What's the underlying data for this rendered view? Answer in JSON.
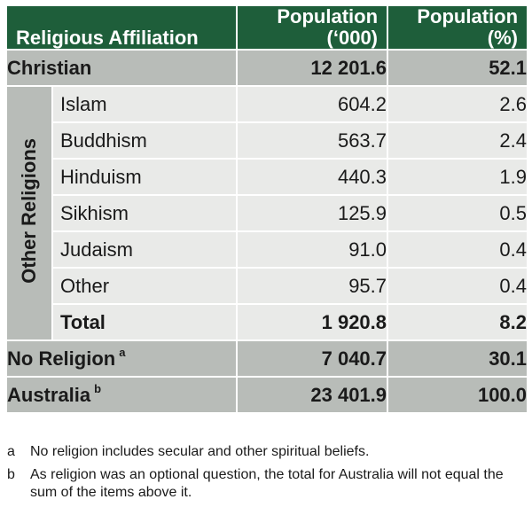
{
  "table": {
    "headers": {
      "affiliation": "Religious Affiliation",
      "population_thousands": [
        "Population",
        "(‘000)"
      ],
      "population_percent": [
        "Population",
        "(%)"
      ]
    },
    "christian": {
      "label": "Christian",
      "thousands": "12 201.6",
      "percent": "52.1"
    },
    "other_religions": {
      "group_label": "Other Religions",
      "rows": [
        {
          "label": "Islam",
          "thousands": "604.2",
          "percent": "2.6"
        },
        {
          "label": "Buddhism",
          "thousands": "563.7",
          "percent": "2.4"
        },
        {
          "label": "Hinduism",
          "thousands": "440.3",
          "percent": "1.9"
        },
        {
          "label": "Sikhism",
          "thousands": "125.9",
          "percent": "0.5"
        },
        {
          "label": "Judaism",
          "thousands": "91.0",
          "percent": "0.4"
        },
        {
          "label": "Other",
          "thousands": "95.7",
          "percent": "0.4"
        }
      ],
      "total": {
        "label": "Total",
        "thousands": "1 920.8",
        "percent": "8.2"
      }
    },
    "no_religion": {
      "label": "No Religion",
      "note": "a",
      "thousands": "7 040.7",
      "percent": "30.1"
    },
    "australia": {
      "label": "Australia",
      "note": "b",
      "thousands": "23 401.9",
      "percent": "100.0"
    }
  },
  "footnotes": [
    {
      "mark": "a",
      "text": "No religion includes secular and other spiritual beliefs."
    },
    {
      "mark": "b",
      "text": "As religion was an optional question, the total for Australia will not equal the sum of the items above it."
    }
  ],
  "colors": {
    "header": "#1e5e3a",
    "summary_row": "#b8bcb8",
    "sub_row": "#e9eae8"
  }
}
